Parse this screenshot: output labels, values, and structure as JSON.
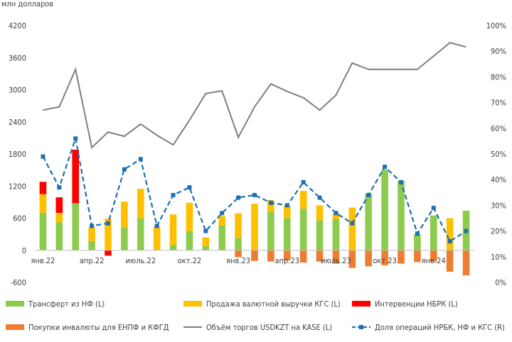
{
  "chart_data": {
    "type": "bar",
    "y_left_label": "млн долларов",
    "y_left_range": [
      -600,
      4200
    ],
    "y_left_ticks": [
      "-600",
      "0",
      "600",
      "1200",
      "1800",
      "2400",
      "3000",
      "3600",
      "4200"
    ],
    "y_right_range": [
      0,
      100
    ],
    "y_right_ticks": [
      "0%",
      "10%",
      "20%",
      "30%",
      "40%",
      "50%",
      "60%",
      "70%",
      "80%",
      "90%",
      "100%"
    ],
    "x_tick_labels": [
      {
        "index": 0,
        "label": "янв.22"
      },
      {
        "index": 3,
        "label": "апр.22"
      },
      {
        "index": 6,
        "label": "июль.22"
      },
      {
        "index": 9,
        "label": "окт.22"
      },
      {
        "index": 12,
        "label": "янв.23"
      },
      {
        "index": 15,
        "label": "апр.23"
      },
      {
        "index": 18,
        "label": "июль.23"
      },
      {
        "index": 21,
        "label": "окт.23"
      },
      {
        "index": 24,
        "label": "янв.24"
      }
    ],
    "months": 27,
    "series": [
      {
        "name": "Трансферт из НФ (L)",
        "kind": "bar",
        "color": "#8DCB4D",
        "values": [
          700,
          520,
          880,
          170,
          0,
          430,
          600,
          0,
          100,
          360,
          80,
          460,
          230,
          0,
          720,
          600,
          780,
          560,
          580,
          0,
          1060,
          1510,
          1300,
          300,
          650,
          0,
          740
        ]
      },
      {
        "name": "Продажа валютной выручки КГС (L)",
        "kind": "bar",
        "color": "#FFC000",
        "values": [
          350,
          180,
          0,
          260,
          590,
          480,
          550,
          440,
          570,
          530,
          160,
          180,
          460,
          870,
          220,
          240,
          330,
          280,
          110,
          800,
          0,
          0,
          0,
          0,
          0,
          600,
          0
        ]
      },
      {
        "name": "Интервенции НБРК (L)",
        "kind": "bar",
        "color": "#FF0000",
        "values": [
          230,
          290,
          1000,
          0,
          -100,
          0,
          0,
          0,
          0,
          0,
          0,
          0,
          0,
          0,
          0,
          0,
          0,
          0,
          0,
          0,
          0,
          0,
          0,
          0,
          0,
          0,
          0
        ]
      },
      {
        "name": "Покупки инвалюты для ЕНПФ и КФГД",
        "kind": "bar",
        "color": "#ED7D31",
        "values": [
          0,
          0,
          0,
          0,
          0,
          0,
          0,
          0,
          0,
          0,
          0,
          0,
          -130,
          -200,
          -210,
          -190,
          -230,
          -210,
          -250,
          -330,
          -300,
          -280,
          -250,
          -220,
          -210,
          -400,
          -470
        ]
      },
      {
        "name": "Объём торгов USDKZT на KASE (L)",
        "kind": "line",
        "color": "#7F7F7F",
        "values": [
          2620,
          2680,
          3380,
          1920,
          2210,
          2130,
          2360,
          2150,
          1970,
          2430,
          2930,
          2980,
          2110,
          2680,
          3110,
          2970,
          2850,
          2620,
          2900,
          3500,
          3380,
          3380,
          3380,
          3380,
          3630,
          3880,
          3800
        ]
      },
      {
        "name": "Доля операций НРБК, НФ и КГС (R)",
        "kind": "line-dashed-right-axis",
        "color": "#1F6FB2",
        "values": [
          49,
          37,
          56,
          22,
          23,
          44,
          48,
          22,
          34,
          37,
          20,
          27,
          33,
          34,
          31,
          30,
          39,
          33,
          27,
          23,
          34,
          45,
          39,
          19,
          29,
          16,
          20
        ]
      }
    ],
    "legend_position": "bottom"
  }
}
